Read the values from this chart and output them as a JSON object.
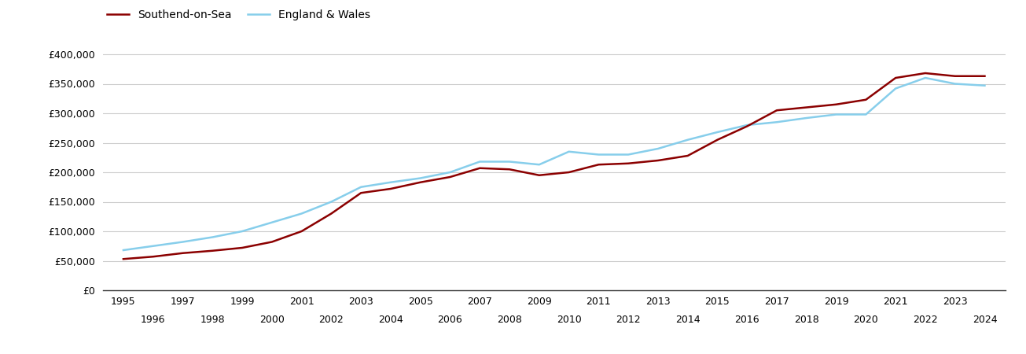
{
  "southend_years": [
    1995,
    1996,
    1997,
    1998,
    1999,
    2000,
    2001,
    2002,
    2003,
    2004,
    2005,
    2006,
    2007,
    2008,
    2009,
    2010,
    2011,
    2012,
    2013,
    2014,
    2015,
    2016,
    2017,
    2018,
    2019,
    2020,
    2021,
    2022,
    2023,
    2024
  ],
  "southend_values": [
    53000,
    57000,
    63000,
    67000,
    72000,
    82000,
    100000,
    130000,
    165000,
    172000,
    183000,
    192000,
    207000,
    205000,
    195000,
    200000,
    213000,
    215000,
    220000,
    228000,
    255000,
    278000,
    305000,
    310000,
    315000,
    323000,
    360000,
    368000,
    363000,
    363000
  ],
  "england_years": [
    1995,
    1996,
    1997,
    1998,
    1999,
    2000,
    2001,
    2002,
    2003,
    2004,
    2005,
    2006,
    2007,
    2008,
    2009,
    2010,
    2011,
    2012,
    2013,
    2014,
    2015,
    2016,
    2017,
    2018,
    2019,
    2020,
    2021,
    2022,
    2023,
    2024
  ],
  "england_values": [
    68000,
    75000,
    82000,
    90000,
    100000,
    115000,
    130000,
    150000,
    175000,
    183000,
    190000,
    200000,
    218000,
    218000,
    213000,
    235000,
    230000,
    230000,
    240000,
    255000,
    268000,
    280000,
    285000,
    292000,
    298000,
    298000,
    342000,
    360000,
    350000,
    347000
  ],
  "southend_color": "#8B0000",
  "england_color": "#87CEEB",
  "southend_label": "Southend-on-Sea",
  "england_label": "England & Wales",
  "ylim": [
    0,
    420000
  ],
  "yticks": [
    0,
    50000,
    100000,
    150000,
    200000,
    250000,
    300000,
    350000,
    400000
  ],
  "bg_color": "#ffffff",
  "grid_color": "#cccccc",
  "line_width": 1.8,
  "tick_fontsize": 9,
  "legend_fontsize": 10
}
